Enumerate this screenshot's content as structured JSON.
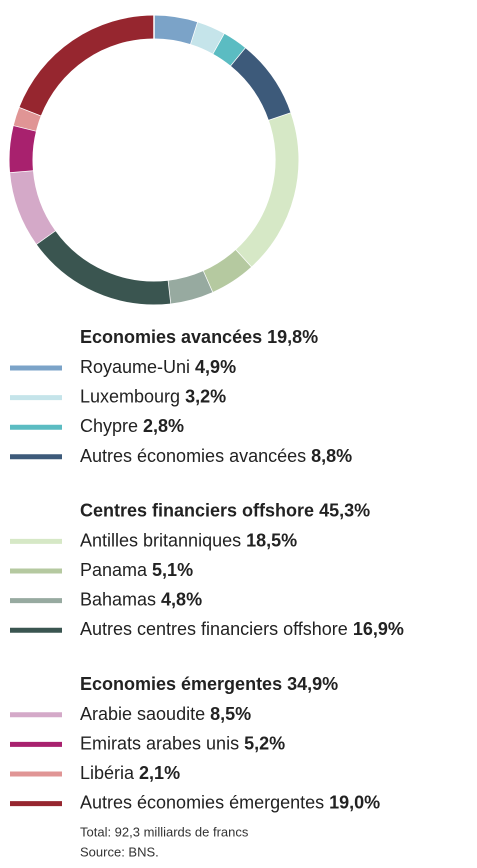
{
  "chart_data": {
    "type": "pie",
    "donut": true,
    "groups": [
      {
        "name": "Economies avancées",
        "value": 19.8,
        "value_label": "19,8%",
        "categories": [
          "Royaume-Uni",
          "Luxembourg",
          "Chypre",
          "Autres économies avancées"
        ],
        "values": [
          4.9,
          3.2,
          2.8,
          8.8
        ],
        "value_labels": [
          "4,9%",
          "3,2%",
          "2,8%",
          "8,8%"
        ],
        "colors": [
          "#7ba3c8",
          "#c5e4ea",
          "#5bbcc2",
          "#3d5a7a"
        ]
      },
      {
        "name": "Centres financiers offshore",
        "value": 45.3,
        "value_label": "45,3%",
        "categories": [
          "Antilles britanniques",
          "Panama",
          "Bahamas",
          "Autres centres financiers offshore"
        ],
        "values": [
          18.5,
          5.1,
          4.8,
          16.9
        ],
        "value_labels": [
          "18,5%",
          "5,1%",
          "4,8%",
          "16,9%"
        ],
        "colors": [
          "#d6e8c6",
          "#b5c9a0",
          "#97aaa0",
          "#3a5550"
        ]
      },
      {
        "name": "Economies émergentes",
        "value": 34.9,
        "value_label": "34,9%",
        "categories": [
          "Arabie saoudite",
          "Emirats arabes unis",
          "Libéria",
          "Autres économies émergentes"
        ],
        "values": [
          8.5,
          5.2,
          2.1,
          19.0
        ],
        "value_labels": [
          "8,5%",
          "5,2%",
          "2,1%",
          "19,0%"
        ],
        "colors": [
          "#d4a9c8",
          "#a8216e",
          "#e09595",
          "#96262f"
        ]
      }
    ],
    "notes": [
      "Total: 92,3 milliards de francs",
      "Source: BNS."
    ]
  }
}
